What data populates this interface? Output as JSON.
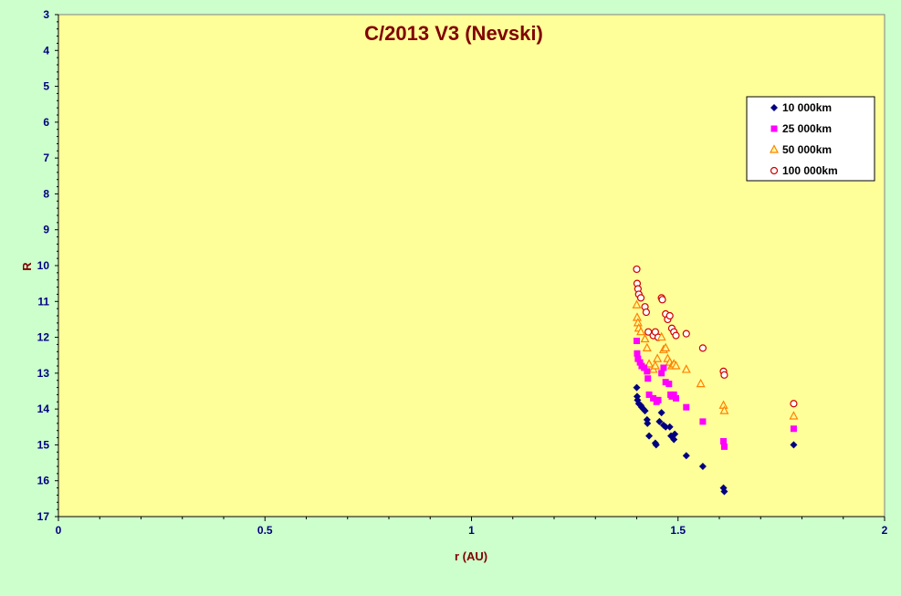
{
  "chart_data": {
    "type": "scatter",
    "title": "C/2013 V3 (Nevski)",
    "xlabel": "r (AU)",
    "ylabel": "R",
    "xlim": [
      0,
      2
    ],
    "ylim": [
      3,
      17
    ],
    "y_reversed": true,
    "x_ticks": [
      "0",
      "0.5",
      "1",
      "1.5",
      "2"
    ],
    "x_tick_values": [
      0,
      0.5,
      1,
      1.5,
      2
    ],
    "y_ticks": [
      "3",
      "4",
      "5",
      "6",
      "7",
      "8",
      "9",
      "10",
      "11",
      "12",
      "13",
      "14",
      "15",
      "16",
      "17"
    ],
    "y_tick_values": [
      3,
      4,
      5,
      6,
      7,
      8,
      9,
      10,
      11,
      12,
      13,
      14,
      15,
      16,
      17
    ],
    "grid": false,
    "legend_position": "top-right",
    "colors": {
      "plot_background": "#ffff99",
      "page_background": "#ccffcc",
      "title": "#800000",
      "ticks": "#000080"
    },
    "series": [
      {
        "name": "10 000km",
        "marker": "diamond",
        "color": "#000080",
        "x": [
          1.4,
          1.401,
          1.402,
          1.405,
          1.41,
          1.412,
          1.416,
          1.42,
          1.425,
          1.426,
          1.43,
          1.445,
          1.447,
          1.455,
          1.46,
          1.465,
          1.47,
          1.48,
          1.483,
          1.49,
          1.492,
          1.52,
          1.56,
          1.61,
          1.612,
          1.78
        ],
        "y": [
          13.4,
          13.65,
          13.75,
          13.85,
          13.9,
          13.95,
          14.0,
          14.05,
          14.3,
          14.4,
          14.75,
          14.95,
          15.0,
          14.35,
          14.1,
          14.45,
          14.5,
          14.5,
          14.75,
          14.85,
          14.7,
          15.3,
          15.6,
          16.2,
          16.3,
          15.0
        ]
      },
      {
        "name": "25 000km",
        "marker": "square",
        "color": "#ff00ff",
        "x": [
          1.4,
          1.401,
          1.403,
          1.408,
          1.412,
          1.418,
          1.425,
          1.427,
          1.43,
          1.44,
          1.448,
          1.452,
          1.46,
          1.465,
          1.47,
          1.478,
          1.482,
          1.485,
          1.49,
          1.495,
          1.52,
          1.56,
          1.61,
          1.612,
          1.78
        ],
        "y": [
          12.1,
          12.45,
          12.6,
          12.7,
          12.8,
          12.85,
          12.95,
          13.15,
          13.6,
          13.7,
          13.8,
          13.75,
          13.0,
          12.85,
          13.25,
          13.3,
          13.6,
          13.65,
          13.6,
          13.7,
          13.95,
          14.35,
          14.9,
          15.05,
          14.55
        ]
      },
      {
        "name": "50 000km",
        "marker": "triangle",
        "color": "#ff8000",
        "x": [
          1.4,
          1.401,
          1.403,
          1.405,
          1.41,
          1.42,
          1.425,
          1.43,
          1.44,
          1.445,
          1.45,
          1.46,
          1.465,
          1.47,
          1.475,
          1.48,
          1.485,
          1.49,
          1.495,
          1.52,
          1.555,
          1.61,
          1.612,
          1.78
        ],
        "y": [
          11.1,
          11.45,
          11.6,
          11.75,
          11.85,
          12.05,
          12.3,
          12.75,
          12.9,
          12.8,
          12.6,
          12.0,
          12.35,
          12.3,
          12.6,
          12.7,
          12.8,
          12.75,
          12.8,
          12.9,
          13.3,
          13.9,
          14.05,
          14.2
        ]
      },
      {
        "name": "100 000km",
        "marker": "circle",
        "color": "#cc0000",
        "x": [
          1.4,
          1.401,
          1.403,
          1.405,
          1.41,
          1.42,
          1.423,
          1.428,
          1.44,
          1.445,
          1.452,
          1.46,
          1.462,
          1.47,
          1.475,
          1.48,
          1.485,
          1.49,
          1.495,
          1.52,
          1.56,
          1.61,
          1.612,
          1.78
        ],
        "y": [
          10.1,
          10.5,
          10.65,
          10.8,
          10.9,
          11.15,
          11.3,
          11.85,
          11.95,
          11.85,
          12.0,
          10.9,
          10.95,
          11.35,
          11.5,
          11.4,
          11.75,
          11.85,
          11.95,
          11.9,
          12.3,
          12.95,
          13.05,
          13.85
        ]
      }
    ]
  }
}
